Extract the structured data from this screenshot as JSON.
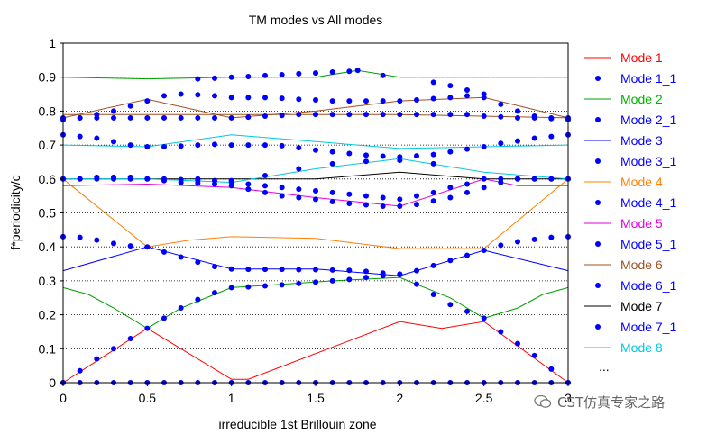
{
  "chart_data": {
    "type": "line",
    "title": "TM modes vs All modes",
    "xlabel": "irreducible 1st Brillouin zone",
    "ylabel": "f*periodicity/c",
    "xlim": [
      0,
      3
    ],
    "ylim": [
      0,
      1
    ],
    "xticks": [
      "0",
      "0.5",
      "1",
      "1.5",
      "2",
      "2.5",
      "3"
    ],
    "yticks": [
      "0",
      "0.1",
      "0.2",
      "0.3",
      "0.4",
      "0.5",
      "0.6",
      "0.7",
      "0.8",
      "0.9",
      "1"
    ],
    "grid": "horizontal dotted",
    "legend_position": "right",
    "legend_more": "...",
    "series": [
      {
        "name": "Mode 1",
        "color": "#ff0000",
        "style": "line",
        "x": [
          0,
          0.5,
          1,
          1.1,
          2,
          2.25,
          2.5,
          3
        ],
        "y": [
          0,
          0.16,
          0.01,
          0.01,
          0.18,
          0.16,
          0.18,
          0
        ]
      },
      {
        "name": "Mode 1_1",
        "color": "#0000ff",
        "style": "dots",
        "x": [
          0,
          0.1,
          0.2,
          0.3,
          0.4,
          0.5,
          0.6,
          0.7,
          0.8,
          0.9,
          1,
          1.1,
          1.2,
          1.3,
          1.4,
          1.5,
          1.6,
          1.7,
          1.8,
          1.9,
          2,
          2.1,
          2.2,
          2.3,
          2.4,
          2.5,
          2.6,
          2.7,
          2.8,
          2.9,
          3
        ],
        "y": [
          0,
          0,
          0,
          0,
          0,
          0,
          0,
          0,
          0,
          0,
          0,
          0,
          0,
          0,
          0,
          0,
          0,
          0,
          0,
          0,
          0,
          0,
          0,
          0,
          0,
          0,
          0,
          0,
          0,
          0,
          0
        ]
      },
      {
        "name": "Mode 2",
        "color": "#00a000",
        "style": "line",
        "x": [
          0,
          0.15,
          0.3,
          0.5,
          0.7,
          1,
          1.3,
          1.6,
          2,
          2.3,
          2.5,
          2.7,
          2.85,
          3
        ],
        "y": [
          0.28,
          0.26,
          0.22,
          0.16,
          0.22,
          0.28,
          0.29,
          0.3,
          0.31,
          0.25,
          0.19,
          0.22,
          0.26,
          0.28
        ]
      },
      {
        "name": "Mode 2_1",
        "color": "#0000ff",
        "style": "dots",
        "x": [
          0,
          0.1,
          0.2,
          0.3,
          0.4,
          0.5,
          0.6,
          0.7,
          0.8,
          0.9,
          1,
          1.1,
          1.2,
          1.3,
          1.4,
          1.5,
          1.6,
          1.7,
          1.8,
          1.9,
          2,
          2.1,
          2.2,
          2.3,
          2.4,
          2.5,
          2.6,
          2.7,
          2.8,
          2.9,
          3
        ],
        "y": [
          0,
          0.035,
          0.07,
          0.1,
          0.13,
          0.16,
          0.19,
          0.22,
          0.245,
          0.265,
          0.28,
          0.282,
          0.285,
          0.288,
          0.292,
          0.296,
          0.3,
          0.304,
          0.31,
          0.315,
          0.32,
          0.29,
          0.26,
          0.23,
          0.21,
          0.19,
          0.15,
          0.115,
          0.08,
          0.04,
          0
        ]
      },
      {
        "name": "Mode 3",
        "color": "#0000ff",
        "style": "line",
        "x": [
          0,
          0.5,
          1,
          1.5,
          2,
          2.5,
          3
        ],
        "y": [
          0.33,
          0.4,
          0.335,
          0.335,
          0.315,
          0.39,
          0.33
        ]
      },
      {
        "name": "Mode 3_1",
        "color": "#0000ff",
        "style": "dots",
        "x": [
          0,
          0.1,
          0.2,
          0.3,
          0.4,
          0.5,
          0.6,
          0.7,
          0.8,
          0.9,
          1,
          1.1,
          1.2,
          1.3,
          1.4,
          1.5,
          1.6,
          1.7,
          1.8,
          1.9,
          2,
          2.1,
          2.2,
          2.3,
          2.4,
          2.5,
          2.6,
          2.7,
          2.8,
          2.9,
          3
        ],
        "y": [
          0.43,
          0.428,
          0.42,
          0.41,
          0.403,
          0.4,
          0.385,
          0.37,
          0.355,
          0.342,
          0.335,
          0.334,
          0.334,
          0.334,
          0.333,
          0.333,
          0.332,
          0.331,
          0.328,
          0.323,
          0.318,
          0.33,
          0.345,
          0.36,
          0.375,
          0.39,
          0.405,
          0.415,
          0.422,
          0.428,
          0.43
        ]
      },
      {
        "name": "Mode 4",
        "color": "#ff8000",
        "style": "line",
        "x": [
          0,
          0.5,
          0.75,
          1,
          1.5,
          2,
          2.5,
          3
        ],
        "y": [
          0.6,
          0.4,
          0.42,
          0.43,
          0.425,
          0.395,
          0.395,
          0.6
        ]
      },
      {
        "name": "Mode 4_1",
        "color": "#0000ff",
        "style": "dots",
        "x": [
          0,
          0.1,
          0.2,
          0.3,
          0.4,
          0.5,
          0.6,
          0.7,
          0.8,
          0.9,
          1,
          1.1,
          1.2,
          1.3,
          1.4,
          1.5,
          1.6,
          1.7,
          1.8,
          1.9,
          2,
          2.1,
          2.2,
          2.3,
          2.4,
          2.5,
          2.6,
          2.7,
          2.8,
          2.9,
          3
        ],
        "y": [
          0.6,
          0.6,
          0.6,
          0.6,
          0.6,
          0.6,
          0.595,
          0.59,
          0.588,
          0.585,
          0.58,
          0.57,
          0.56,
          0.55,
          0.545,
          0.54,
          0.533,
          0.528,
          0.524,
          0.52,
          0.52,
          0.525,
          0.535,
          0.545,
          0.56,
          0.575,
          0.59,
          0.6,
          0.6,
          0.6,
          0.6
        ]
      },
      {
        "name": "Mode 5",
        "color": "#e000e0",
        "style": "line",
        "x": [
          0,
          0.5,
          1,
          1.5,
          2,
          2.5,
          2.7,
          3
        ],
        "y": [
          0.58,
          0.585,
          0.575,
          0.545,
          0.52,
          0.6,
          0.58,
          0.58
        ]
      },
      {
        "name": "Mode 5_1",
        "color": "#0000ff",
        "style": "dots",
        "x": [
          0,
          0.1,
          0.2,
          0.3,
          0.4,
          0.5,
          0.6,
          0.7,
          0.8,
          0.9,
          1,
          1.1,
          1.2,
          1.3,
          1.4,
          1.5,
          1.6,
          1.7,
          1.8,
          1.9,
          2,
          2.1,
          2.2,
          2.3,
          2.4,
          2.5,
          2.6,
          2.7,
          2.8,
          2.9,
          3
        ],
        "y": [
          0.6,
          0.6,
          0.605,
          0.605,
          0.605,
          0.6,
          0.6,
          0.598,
          0.596,
          0.595,
          0.59,
          0.585,
          0.58,
          0.575,
          0.57,
          0.565,
          0.56,
          0.555,
          0.55,
          0.545,
          0.54,
          0.55,
          0.56,
          0.575,
          0.585,
          0.6,
          0.6,
          0.6,
          0.6,
          0.6,
          0.6
        ]
      },
      {
        "name": "Mode 6",
        "color": "#a05020",
        "style": "line",
        "x": [
          0,
          0.5,
          1,
          1.5,
          2,
          2.5,
          3
        ],
        "y": [
          0.78,
          0.835,
          0.78,
          0.8,
          0.83,
          0.84,
          0.78
        ]
      },
      {
        "name": "Mode 6_1",
        "color": "#0000ff",
        "style": "dots",
        "x": [
          0,
          0.1,
          0.2,
          0.3,
          0.4,
          0.5,
          0.6,
          0.7,
          0.8,
          0.9,
          1,
          1.1,
          1.2,
          1.3,
          1.4,
          1.5,
          1.6,
          1.7,
          1.8,
          1.9,
          2,
          2.1,
          2.2,
          2.3,
          2.4,
          2.5,
          2.6,
          2.7,
          2.8,
          2.9,
          3
        ],
        "y": [
          0.775,
          0.78,
          0.79,
          0.8,
          0.815,
          0.83,
          0.845,
          0.85,
          0.848,
          0.845,
          0.84,
          0.84,
          0.84,
          0.838,
          0.835,
          0.833,
          0.83,
          0.83,
          0.83,
          0.83,
          0.83,
          0.833,
          0.837,
          0.84,
          0.845,
          0.84,
          0.82,
          0.8,
          0.785,
          0.778,
          0.775
        ]
      },
      {
        "name": "Mode 7",
        "color": "#000000",
        "style": "line",
        "x": [
          0,
          0.5,
          1,
          1.5,
          2,
          2.5,
          3
        ],
        "y": [
          0.6,
          0.6,
          0.6,
          0.6,
          0.62,
          0.6,
          0.6
        ]
      },
      {
        "name": "Mode 7_1",
        "color": "#0000ff",
        "style": "dots",
        "x": [
          0,
          0.1,
          0.2,
          0.3,
          0.4,
          0.5,
          0.6,
          0.7,
          0.8,
          0.9,
          1,
          1.1,
          1.2,
          1.3,
          1.4,
          1.5,
          1.6,
          1.7,
          1.8,
          1.9,
          2,
          2.1,
          2.2,
          2.3,
          2.4,
          2.5,
          2.6,
          2.7,
          2.8,
          2.9,
          3
        ],
        "y": [
          0.73,
          0.725,
          0.72,
          0.71,
          0.7,
          0.695,
          0.695,
          0.697,
          0.7,
          0.702,
          0.7,
          0.7,
          0.7,
          0.698,
          0.692,
          0.685,
          0.68,
          0.675,
          0.67,
          0.667,
          0.665,
          0.668,
          0.672,
          0.68,
          0.688,
          0.695,
          0.705,
          0.712,
          0.72,
          0.725,
          0.73
        ]
      },
      {
        "name": "Mode 8",
        "color": "#00c8e0",
        "style": "line",
        "x": [
          0,
          0.5,
          1,
          1.5,
          2,
          2.5,
          3
        ],
        "y": [
          0.6,
          0.6,
          0.59,
          0.63,
          0.66,
          0.62,
          0.6
        ]
      }
    ],
    "extra_curves": [
      {
        "color": "#00a000",
        "style": "line",
        "x": [
          0,
          0.5,
          1,
          1.5,
          1.75,
          2,
          2.5,
          3
        ],
        "y": [
          0.9,
          0.895,
          0.9,
          0.9,
          0.92,
          0.9,
          0.9,
          0.9
        ]
      },
      {
        "color": "#0000ff",
        "style": "dots",
        "x": [
          0.8,
          0.9,
          1,
          1.1,
          1.2,
          1.3,
          1.4,
          1.5,
          1.6,
          1.7,
          1.75,
          1.9,
          2.2,
          2.3,
          2.4,
          2.5
        ],
        "y": [
          0.895,
          0.897,
          0.9,
          0.902,
          0.905,
          0.907,
          0.91,
          0.912,
          0.915,
          0.917,
          0.92,
          0.905,
          0.885,
          0.875,
          0.862,
          0.85
        ]
      },
      {
        "color": "#a05020",
        "style": "line",
        "x": [
          0,
          1,
          2,
          3
        ],
        "y": [
          0.79,
          0.79,
          0.79,
          0.78
        ]
      },
      {
        "color": "#0000ff",
        "style": "dots",
        "x": [
          0,
          0.1,
          0.2,
          0.3,
          0.4,
          0.5,
          0.6,
          0.7,
          0.8,
          0.9,
          1,
          1.1,
          1.2,
          1.3,
          1.4,
          1.5,
          1.6,
          1.7,
          1.8,
          1.9,
          2,
          2.1,
          2.2,
          2.3,
          2.4,
          2.5,
          2.6,
          2.7,
          2.8,
          2.9,
          3
        ],
        "y": [
          0.78,
          0.78,
          0.78,
          0.78,
          0.78,
          0.78,
          0.78,
          0.78,
          0.78,
          0.78,
          0.78,
          0.782,
          0.785,
          0.787,
          0.79,
          0.79,
          0.79,
          0.79,
          0.79,
          0.79,
          0.79,
          0.79,
          0.79,
          0.79,
          0.79,
          0.785,
          0.783,
          0.78,
          0.78,
          0.78,
          0.78
        ]
      },
      {
        "color": "#00c8e0",
        "style": "line",
        "x": [
          0,
          0.5,
          1,
          1.5,
          2,
          2.5,
          3
        ],
        "y": [
          0.7,
          0.695,
          0.73,
          0.71,
          0.69,
          0.695,
          0.7
        ]
      },
      {
        "color": "#0000ff",
        "style": "dots",
        "x": [
          0.8,
          1,
          1.2,
          1.4,
          1.6,
          1.8,
          2,
          2.2
        ],
        "y": [
          0.6,
          0.595,
          0.61,
          0.63,
          0.645,
          0.652,
          0.655,
          0.645
        ]
      }
    ],
    "legend": [
      {
        "label": "Mode 1",
        "color": "#ff0000",
        "style": "line"
      },
      {
        "label": "Mode 1_1",
        "color": "#0000ff",
        "style": "dots"
      },
      {
        "label": "Mode 2",
        "color": "#00a000",
        "style": "line"
      },
      {
        "label": "Mode 2_1",
        "color": "#0000ff",
        "style": "dots"
      },
      {
        "label": "Mode 3",
        "color": "#0000ff",
        "style": "line"
      },
      {
        "label": "Mode 3_1",
        "color": "#0000ff",
        "style": "dots"
      },
      {
        "label": "Mode 4",
        "color": "#ff8000",
        "style": "line"
      },
      {
        "label": "Mode 4_1",
        "color": "#0000ff",
        "style": "dots"
      },
      {
        "label": "Mode 5",
        "color": "#e000e0",
        "style": "line"
      },
      {
        "label": "Mode 5_1",
        "color": "#0000ff",
        "style": "dots"
      },
      {
        "label": "Mode 6",
        "color": "#a05020",
        "style": "line"
      },
      {
        "label": "Mode 6_1",
        "color": "#0000ff",
        "style": "dots"
      },
      {
        "label": "Mode 7",
        "color": "#000000",
        "style": "line"
      },
      {
        "label": "Mode 7_1",
        "color": "#0000ff",
        "style": "dots"
      },
      {
        "label": "Mode 8",
        "color": "#00c8e0",
        "style": "line"
      }
    ]
  },
  "watermark": {
    "text": "CST仿真专家之路"
  }
}
